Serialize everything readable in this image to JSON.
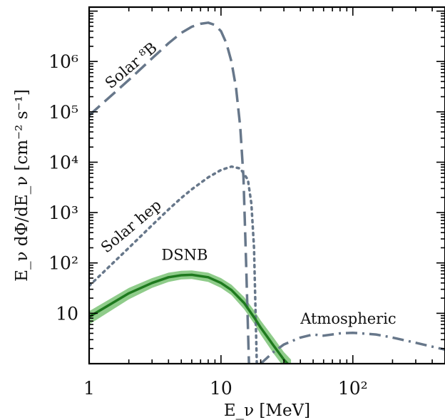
{
  "chart_data": {
    "type": "line",
    "xlabel": "E_ν [MeV]",
    "ylabel": "E_ν dΦ/dE_ν [cm⁻² s⁻¹]",
    "xscale": "log",
    "yscale": "log",
    "xlim": [
      1,
      500
    ],
    "ylim": [
      1.0,
      12000000
    ],
    "grid": false,
    "x_ticks": [
      {
        "value": 1,
        "label": "1"
      },
      {
        "value": 10,
        "label": "10"
      },
      {
        "value": 100,
        "label": "10²"
      }
    ],
    "y_ticks": [
      {
        "value": 10,
        "label": "10"
      },
      {
        "value": 100,
        "label": "10²"
      },
      {
        "value": 1000,
        "label": "10³"
      },
      {
        "value": 10000,
        "label": "10⁴"
      },
      {
        "value": 100000,
        "label": "10⁵"
      },
      {
        "value": 1000000,
        "label": "10⁶"
      }
    ],
    "series": [
      {
        "name": "Solar ⁸B",
        "style": "dashed",
        "color": "#67778a",
        "x": [
          1,
          2,
          3,
          4,
          5,
          6,
          7,
          8,
          9,
          10,
          11,
          12,
          13,
          14,
          14.8,
          15.5,
          16.3
        ],
        "y": [
          85000,
          430000,
          1150000,
          2300000,
          3700000,
          4900000,
          5600000,
          5900000,
          5300000,
          4000000,
          2300000,
          1000000,
          300000,
          50000,
          5000,
          100,
          1.0
        ]
      },
      {
        "name": "Solar hep",
        "style": "dotted",
        "color": "#67778a",
        "x": [
          1,
          2,
          3,
          4,
          5,
          6,
          8,
          10,
          12,
          14,
          16,
          17,
          17.8,
          18.3,
          18.7
        ],
        "y": [
          35,
          200,
          560,
          1150,
          1950,
          2900,
          5000,
          7000,
          8200,
          7500,
          4500,
          1500,
          200,
          10,
          1.0
        ]
      },
      {
        "name": "DSNB",
        "style": "solid",
        "color": "#1e7a1e",
        "band_color": "#8fcc8a",
        "x": [
          1,
          2,
          3,
          4,
          5,
          6,
          8,
          10,
          12,
          15,
          18,
          20,
          25,
          30,
          34
        ],
        "y": [
          8.5,
          25,
          40,
          52,
          57,
          58,
          52,
          40,
          29,
          16,
          8,
          5.2,
          2.3,
          1.2,
          0.85
        ],
        "band_lower": [
          6,
          19,
          32,
          42,
          47,
          48,
          42,
          32,
          23,
          12,
          6,
          3.8,
          1.6,
          0.85,
          0.6
        ],
        "band_upper": [
          11,
          32,
          50,
          64,
          70,
          71,
          64,
          50,
          37,
          21,
          11,
          7.2,
          3.3,
          1.7,
          1.2
        ]
      },
      {
        "name": "Atmospheric",
        "style": "dashdot",
        "color": "#67778a",
        "x": [
          20,
          25,
          30,
          40,
          50,
          60,
          80,
          100,
          150,
          200,
          300,
          500
        ],
        "y": [
          1.0,
          1.7,
          2.4,
          3.3,
          3.8,
          3.6,
          4.0,
          4.1,
          3.8,
          3.3,
          2.6,
          1.9
        ]
      }
    ],
    "annotations": [
      {
        "text": "Solar ⁸B",
        "series": "Solar ⁸B"
      },
      {
        "text": "Solar hep",
        "series": "Solar hep"
      },
      {
        "text": "DSNB",
        "series": "DSNB"
      },
      {
        "text": "Atmospheric",
        "series": "Atmospheric"
      }
    ]
  }
}
